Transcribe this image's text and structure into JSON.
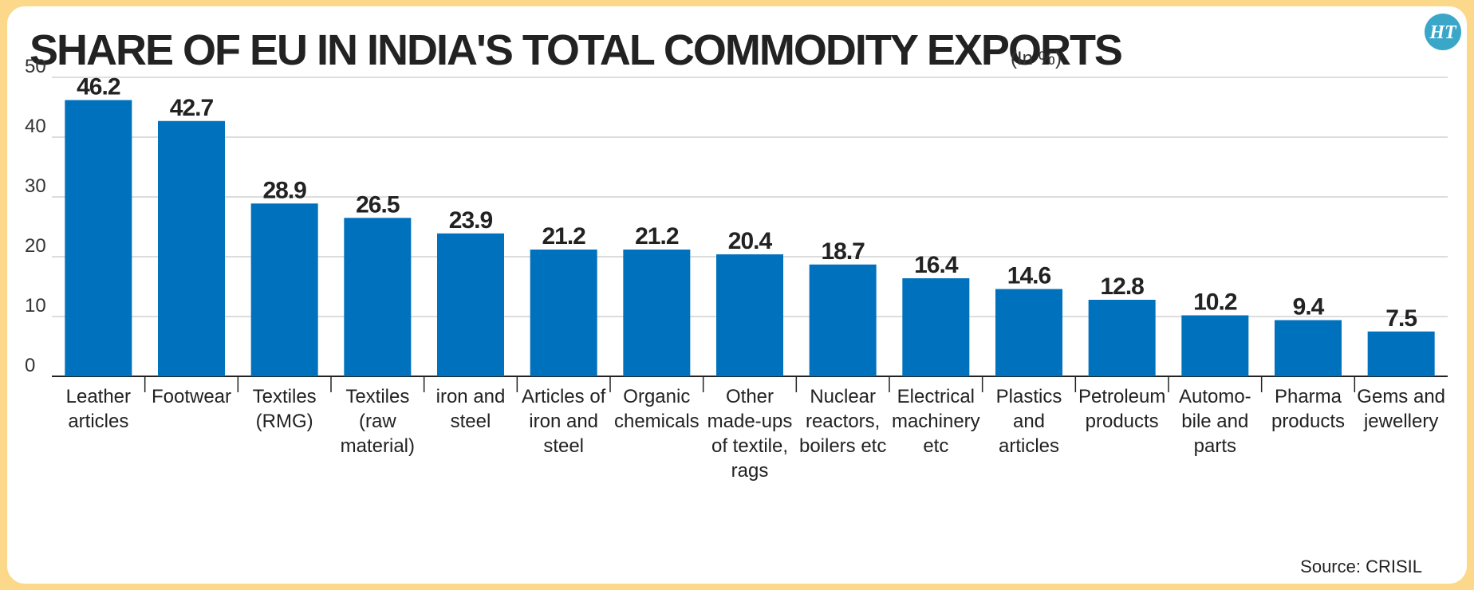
{
  "header": {
    "title": "SHARE OF EU IN INDIA'S TOTAL COMMODITY EXPORTS",
    "unit": "(In %)",
    "logo_text": "HT",
    "logo_color": "#3aa7c9"
  },
  "footer": {
    "source": "Source: CRISIL"
  },
  "colors": {
    "bar": "#0071bc",
    "background": "#fcd98a",
    "grid": "#bbbbbb"
  },
  "chart_data": {
    "type": "bar",
    "categories": [
      [
        "Leather",
        "articles"
      ],
      [
        "Footwear"
      ],
      [
        "Textiles",
        "(RMG)"
      ],
      [
        "Textiles",
        "(raw",
        "material)"
      ],
      [
        "iron and",
        "steel"
      ],
      [
        "Articles of",
        "iron and",
        "steel"
      ],
      [
        "Organic",
        "chemicals"
      ],
      [
        "Other",
        "made-ups",
        "of textile,",
        "rags"
      ],
      [
        "Nuclear",
        "reactors,",
        "boilers etc"
      ],
      [
        "Electrical",
        "machinery",
        "etc"
      ],
      [
        "Plastics",
        "and",
        "articles"
      ],
      [
        "Petroleum",
        "products"
      ],
      [
        "Automo-",
        "bile and",
        "parts"
      ],
      [
        "Pharma",
        "products"
      ],
      [
        "Gems and",
        "jewellery"
      ]
    ],
    "values": [
      46.2,
      42.7,
      28.9,
      26.5,
      23.9,
      21.2,
      21.2,
      20.4,
      18.7,
      16.4,
      14.6,
      12.8,
      10.2,
      9.4,
      7.5
    ],
    "value_labels": [
      "46.2",
      "42.7",
      "28.9",
      "26.5",
      "23.9",
      "21.2",
      "21.2",
      "20.4",
      "18.7",
      "16.4",
      "14.6",
      "12.8",
      "10.2",
      "9.4",
      "7.5"
    ],
    "yticks": [
      "0",
      "10",
      "20",
      "30",
      "40",
      "50"
    ],
    "ylim": [
      0,
      50
    ],
    "grid": true,
    "title": "SHARE OF EU IN INDIA'S TOTAL COMMODITY EXPORTS",
    "unit": "(In %)"
  }
}
